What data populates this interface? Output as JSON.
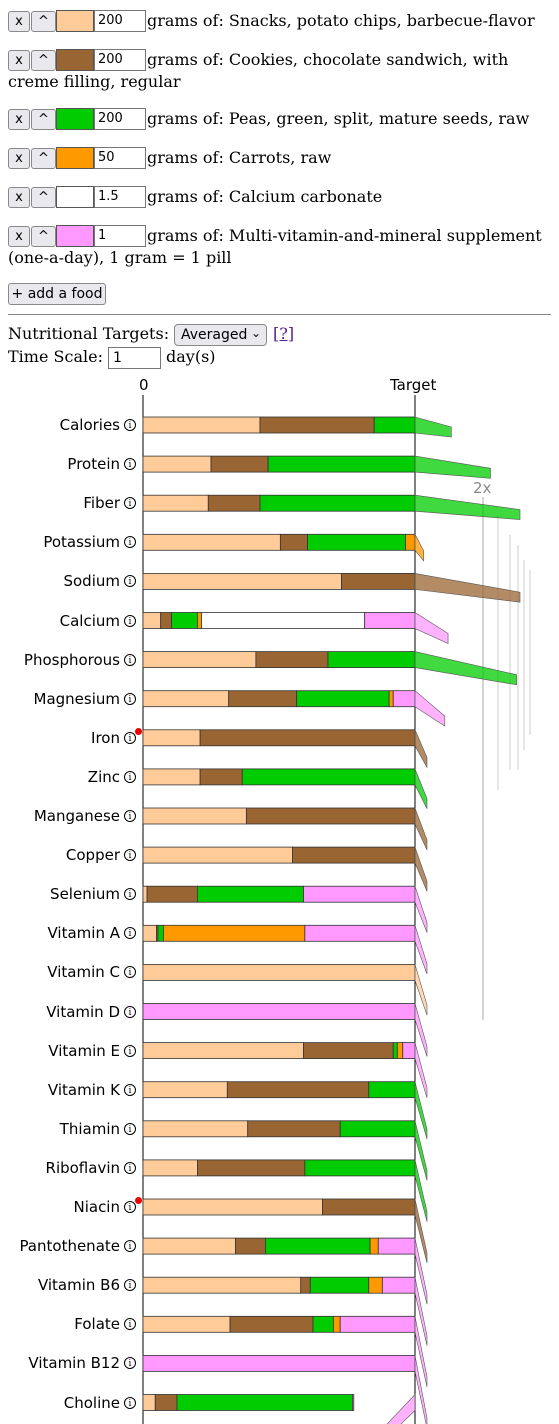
{
  "foods": [
    {
      "amount": "200",
      "label": "grams of: Snacks, potato chips, barbecue-flavor",
      "label2": "",
      "color": "#ffcc99"
    },
    {
      "amount": "200",
      "label": "grams of: Cookies, chocolate sandwich, with",
      "label2": "creme filling, regular",
      "color": "#996633"
    },
    {
      "amount": "200",
      "label": "grams of: Peas, green, split, mature seeds, raw",
      "label2": "",
      "color": "#00cc00"
    },
    {
      "amount": "50",
      "label": "grams of: Carrots, raw",
      "label2": "",
      "color": "#ff9900"
    },
    {
      "amount": "1.5",
      "label": "grams of: Calcium carbonate",
      "label2": "",
      "color": "#ffffff"
    },
    {
      "amount": "1",
      "label": "grams of: Multi-vitamin-and-mineral supplement",
      "label2": "(one-a-day), 1 gram = 1 pill",
      "color": "#ff99ff"
    }
  ],
  "controls": {
    "remove_label": "x",
    "up_label": "^",
    "add_food_label": "+ add a food",
    "targets_label": "Nutritional Targets:",
    "targets_value": "Averaged",
    "help_link": "[?]",
    "timescale_label": "Time Scale:",
    "timescale_value": "1",
    "days_label": "day(s)"
  },
  "chart_data": {
    "type": "bar",
    "axis_labels": {
      "zero": "0",
      "target": "Target",
      "double": "2x"
    },
    "series_colors": [
      "#ffcc99",
      "#996633",
      "#00cc00",
      "#ff9900",
      "#ffffff",
      "#ff99ff"
    ],
    "nutrients": [
      {
        "name": "Calories",
        "warn": false,
        "segments": [
          0.43,
          0.42,
          0.15,
          0,
          0,
          0
        ],
        "over": 1.05
      },
      {
        "name": "Protein",
        "warn": false,
        "segments": [
          0.25,
          0.21,
          0.54,
          0,
          0,
          0
        ],
        "over": 1.17
      },
      {
        "name": "Fiber",
        "warn": false,
        "segments": [
          0.24,
          0.19,
          0.57,
          0,
          0,
          0
        ],
        "over": 1.33
      },
      {
        "name": "Potassium",
        "warn": false,
        "segments": [
          0.505,
          0.1,
          0.36,
          0.035,
          0,
          0
        ],
        "over": 0.99
      },
      {
        "name": "Sodium",
        "warn": false,
        "segments": [
          0.73,
          0.27,
          0,
          0,
          0,
          0
        ],
        "over": 1.27
      },
      {
        "name": "Calcium",
        "warn": false,
        "segments": [
          0.065,
          0.04,
          0.095,
          0.015,
          0.6,
          0.185
        ],
        "over": 1.04
      },
      {
        "name": "Phosphorous",
        "warn": false,
        "segments": [
          0.415,
          0.265,
          0.32,
          0,
          0,
          0
        ],
        "over": 1.25
      },
      {
        "name": "Magnesium",
        "warn": false,
        "segments": [
          0.315,
          0.25,
          0.34,
          0.015,
          0,
          0.08
        ],
        "over": 1.03
      },
      {
        "name": "Iron",
        "warn": true,
        "segments": [
          0.21,
          0.79,
          0,
          0,
          0,
          0
        ],
        "over": 1.0
      },
      {
        "name": "Zinc",
        "warn": false,
        "segments": [
          0.21,
          0.155,
          0.635,
          0,
          0,
          0
        ],
        "over": 1.0
      },
      {
        "name": "Manganese",
        "warn": false,
        "segments": [
          0.38,
          0.62,
          0,
          0,
          0,
          0
        ],
        "over": 1.0
      },
      {
        "name": "Copper",
        "warn": false,
        "segments": [
          0.55,
          0.45,
          0,
          0,
          0,
          0
        ],
        "over": 1.0
      },
      {
        "name": "Selenium",
        "warn": false,
        "segments": [
          0.015,
          0.185,
          0.39,
          0,
          0,
          0.41
        ],
        "over": 1.0
      },
      {
        "name": "Vitamin A",
        "warn": false,
        "segments": [
          0.05,
          0.005,
          0.02,
          0.52,
          0,
          0.405
        ],
        "over": 1.0
      },
      {
        "name": "Vitamin C",
        "warn": false,
        "segments": [
          1.0,
          0,
          0,
          0,
          0,
          0
        ],
        "over": 1.0
      },
      {
        "name": "Vitamin D",
        "warn": false,
        "segments": [
          0,
          0,
          0,
          0,
          0,
          1.0
        ],
        "over": 1.0
      },
      {
        "name": "Vitamin E",
        "warn": false,
        "segments": [
          0.59,
          0.33,
          0.015,
          0.02,
          0,
          0.045
        ],
        "over": 1.0
      },
      {
        "name": "Vitamin K",
        "warn": false,
        "segments": [
          0.31,
          0.52,
          0.17,
          0,
          0,
          0
        ],
        "over": 1.0
      },
      {
        "name": "Thiamin",
        "warn": false,
        "segments": [
          0.385,
          0.34,
          0.275,
          0,
          0,
          0
        ],
        "over": 1.0
      },
      {
        "name": "Riboflavin",
        "warn": false,
        "segments": [
          0.2,
          0.395,
          0.405,
          0,
          0,
          0
        ],
        "over": 1.0
      },
      {
        "name": "Niacin",
        "warn": true,
        "segments": [
          0.66,
          0.34,
          0,
          0,
          0,
          0
        ],
        "over": 1.0
      },
      {
        "name": "Pantothenate",
        "warn": false,
        "segments": [
          0.34,
          0.11,
          0.385,
          0.03,
          0,
          0.135
        ],
        "over": 1.0
      },
      {
        "name": "Vitamin B6",
        "warn": false,
        "segments": [
          0.58,
          0.035,
          0.215,
          0.05,
          0,
          0.12
        ],
        "over": 1.0
      },
      {
        "name": "Folate",
        "warn": false,
        "segments": [
          0.32,
          0.305,
          0.075,
          0.025,
          0,
          0.275
        ],
        "over": 1.0
      },
      {
        "name": "Vitamin B12",
        "warn": false,
        "segments": [
          0,
          0,
          0,
          0,
          0,
          1.0
        ],
        "over": 1.0
      },
      {
        "name": "Choline",
        "warn": false,
        "segments": [
          0.045,
          0.08,
          0.645,
          0,
          0,
          0.005
        ],
        "over": 0.775
      }
    ]
  }
}
